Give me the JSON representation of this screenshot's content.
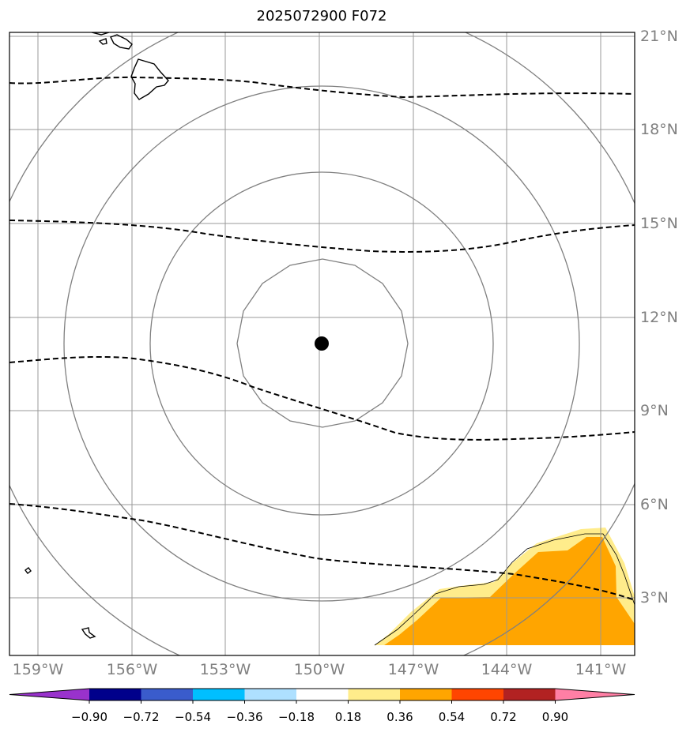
{
  "title": "2025072900 F072",
  "map": {
    "lon_range": [
      -160,
      -140
    ],
    "lat_range": [
      1,
      21
    ],
    "x_ticks": [
      {
        "lon": -159,
        "label": "159°W"
      },
      {
        "lon": -156,
        "label": "156°W"
      },
      {
        "lon": -153,
        "label": "153°W"
      },
      {
        "lon": -150,
        "label": "150°W"
      },
      {
        "lon": -147,
        "label": "147°W"
      },
      {
        "lon": -144,
        "label": "144°W"
      },
      {
        "lon": -141,
        "label": "141°W"
      }
    ],
    "y_ticks": [
      {
        "lat": 21,
        "label": "21°N"
      },
      {
        "lat": 18,
        "label": "18°N"
      },
      {
        "lat": 15,
        "label": "15°N"
      },
      {
        "lat": 12,
        "label": "12°N"
      },
      {
        "lat": 9,
        "label": "9°N"
      },
      {
        "lat": 6,
        "label": "6°N"
      },
      {
        "lat": 3,
        "label": "3°N"
      }
    ],
    "center_marker": {
      "lon": -150.0,
      "lat": 11.1
    },
    "range_rings_deg": [
      2.75,
      5.45,
      8.2,
      10.95
    ],
    "grid": true
  },
  "colorbar": {
    "ticks": [
      "−0.90",
      "−0.72",
      "−0.54",
      "−0.36",
      "−0.18",
      "0.18",
      "0.36",
      "0.54",
      "0.72",
      "0.90"
    ],
    "colors": [
      "#9932cc",
      "#00008b",
      "#3a5ccc",
      "#00bfff",
      "#aee0ff",
      "#ffffff",
      "#ffec8b",
      "#ffa500",
      "#ff4500",
      "#b22222",
      "#ff7fa5"
    ],
    "extend": "both"
  },
  "colors": {
    "grid": "#999999",
    "rings": "#808080",
    "contour": "#000000",
    "tick_text": "#808080"
  }
}
